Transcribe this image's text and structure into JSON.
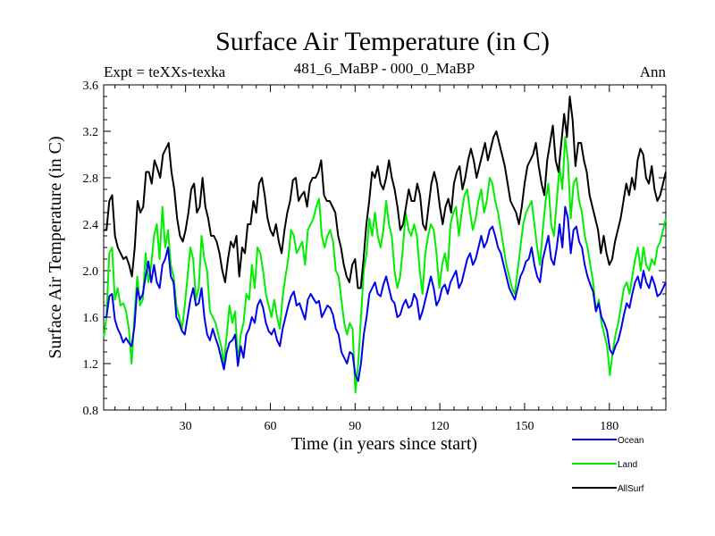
{
  "chart_data": {
    "type": "line",
    "title": "Surface Air Temperature (in C)",
    "subtitle_left": "Expt = teXXs-texka",
    "subtitle_center": "481_6_MaBP - 000_0_MaBP",
    "subtitle_right": "Ann",
    "xlabel": "Time (in years since start)",
    "ylabel": "Surface Air Temperature (in C)",
    "xlim": [
      1,
      200
    ],
    "ylim": [
      0.8,
      3.6
    ],
    "xticks": [
      30,
      60,
      90,
      120,
      150,
      180
    ],
    "yticks": [
      "0.8",
      "1.2",
      "1.6",
      "2.0",
      "2.4",
      "2.8",
      "3.2",
      "3.6"
    ],
    "series": [
      {
        "name": "Ocean",
        "color": "#0000ee",
        "values": [
          1.6,
          1.6,
          1.78,
          1.8,
          1.58,
          1.5,
          1.45,
          1.38,
          1.42,
          1.38,
          1.35,
          1.52,
          1.85,
          1.75,
          1.8,
          1.95,
          2.08,
          1.9,
          2.05,
          1.9,
          1.85,
          2.05,
          2.1,
          2.2,
          1.95,
          1.9,
          1.6,
          1.55,
          1.48,
          1.45,
          1.6,
          1.75,
          1.85,
          1.7,
          1.72,
          1.85,
          1.6,
          1.45,
          1.4,
          1.5,
          1.42,
          1.35,
          1.25,
          1.15,
          1.3,
          1.38,
          1.4,
          1.45,
          1.18,
          1.35,
          1.25,
          1.45,
          1.5,
          1.6,
          1.55,
          1.7,
          1.75,
          1.68,
          1.55,
          1.48,
          1.45,
          1.5,
          1.4,
          1.35,
          1.5,
          1.6,
          1.7,
          1.78,
          1.82,
          1.7,
          1.72,
          1.65,
          1.58,
          1.75,
          1.8,
          1.76,
          1.72,
          1.74,
          1.6,
          1.65,
          1.7,
          1.68,
          1.62,
          1.5,
          1.45,
          1.3,
          1.25,
          1.2,
          1.3,
          1.28,
          1.1,
          1.05,
          1.2,
          1.45,
          1.6,
          1.8,
          1.85,
          1.9,
          1.8,
          1.78,
          1.88,
          1.95,
          1.85,
          1.75,
          1.72,
          1.6,
          1.62,
          1.7,
          1.75,
          1.68,
          1.7,
          1.8,
          1.75,
          1.58,
          1.65,
          1.75,
          1.85,
          1.95,
          1.85,
          1.7,
          1.75,
          1.85,
          1.88,
          1.8,
          1.9,
          1.95,
          2.0,
          1.85,
          1.9,
          2.0,
          2.1,
          2.15,
          2.05,
          2.1,
          2.2,
          2.3,
          2.2,
          2.25,
          2.35,
          2.38,
          2.3,
          2.2,
          2.15,
          2.05,
          1.95,
          1.85,
          1.8,
          1.75,
          1.85,
          1.95,
          2.0,
          2.08,
          2.1,
          2.2,
          2.05,
          1.95,
          1.9,
          2.1,
          2.2,
          2.3,
          2.1,
          2.05,
          2.2,
          2.4,
          2.2,
          2.55,
          2.45,
          2.15,
          2.35,
          2.38,
          2.25,
          2.2,
          2.05,
          1.95,
          1.88,
          1.82,
          1.65,
          1.72,
          1.6,
          1.55,
          1.48,
          1.32,
          1.28,
          1.35,
          1.4,
          1.5,
          1.62,
          1.72,
          1.68,
          1.8,
          1.9,
          1.95,
          1.85,
          2.0,
          1.9,
          1.85,
          1.95,
          1.88,
          1.78,
          1.8,
          1.85,
          1.9
        ]
      },
      {
        "name": "Land",
        "color": "#00ee00",
        "values": [
          1.42,
          1.6,
          2.15,
          2.2,
          1.75,
          1.85,
          1.7,
          1.72,
          1.65,
          1.5,
          1.2,
          1.6,
          1.95,
          1.7,
          1.75,
          2.15,
          1.9,
          2.05,
          2.3,
          2.4,
          2.1,
          2.55,
          2.2,
          2.35,
          2.05,
          1.95,
          1.7,
          1.6,
          1.5,
          1.7,
          1.95,
          2.2,
          2.1,
          1.75,
          1.85,
          2.3,
          2.1,
          2.0,
          1.65,
          1.6,
          1.55,
          1.45,
          1.35,
          1.2,
          1.45,
          1.7,
          1.55,
          1.65,
          1.2,
          1.45,
          1.55,
          1.8,
          1.75,
          2.05,
          1.85,
          2.2,
          2.15,
          2.0,
          1.8,
          1.7,
          1.6,
          1.75,
          1.6,
          1.5,
          1.78,
          1.95,
          2.1,
          2.35,
          2.3,
          2.15,
          2.2,
          2.25,
          2.05,
          2.35,
          2.4,
          2.45,
          2.55,
          2.62,
          2.3,
          2.2,
          2.3,
          2.35,
          2.25,
          2.0,
          1.95,
          1.75,
          1.55,
          1.45,
          1.55,
          1.5,
          0.95,
          1.2,
          1.6,
          2.0,
          2.15,
          2.45,
          2.3,
          2.5,
          2.3,
          2.2,
          2.35,
          2.6,
          2.4,
          2.3,
          2.0,
          1.85,
          1.95,
          2.2,
          2.5,
          2.35,
          2.3,
          2.4,
          2.3,
          2.0,
          1.8,
          2.15,
          2.3,
          2.4,
          2.35,
          2.15,
          1.85,
          2.05,
          2.15,
          2.0,
          2.4,
          2.5,
          2.55,
          2.3,
          2.5,
          2.65,
          2.7,
          2.5,
          2.35,
          2.45,
          2.6,
          2.7,
          2.5,
          2.6,
          2.8,
          2.75,
          2.6,
          2.5,
          2.35,
          2.2,
          2.05,
          1.95,
          1.85,
          1.8,
          2.0,
          2.2,
          2.4,
          2.5,
          2.55,
          2.6,
          2.4,
          2.2,
          2.05,
          2.35,
          2.6,
          2.75,
          2.4,
          2.3,
          2.6,
          2.9,
          2.7,
          3.15,
          2.95,
          2.45,
          2.75,
          2.8,
          2.6,
          2.5,
          2.3,
          2.2,
          2.05,
          1.9,
          1.65,
          1.75,
          1.55,
          1.45,
          1.35,
          1.1,
          1.3,
          1.45,
          1.55,
          1.7,
          1.85,
          1.9,
          1.8,
          1.95,
          2.1,
          2.2,
          2.0,
          2.2,
          2.05,
          2.0,
          2.1,
          2.05,
          2.2,
          2.25,
          2.35,
          2.45
        ]
      },
      {
        "name": "AllSurf",
        "color": "#000000",
        "values": [
          2.35,
          2.35,
          2.6,
          2.65,
          2.3,
          2.2,
          2.15,
          2.1,
          2.12,
          2.05,
          1.95,
          2.2,
          2.6,
          2.5,
          2.55,
          2.85,
          2.85,
          2.75,
          2.95,
          2.88,
          2.8,
          3.0,
          3.05,
          3.1,
          2.85,
          2.7,
          2.45,
          2.3,
          2.25,
          2.35,
          2.5,
          2.7,
          2.75,
          2.5,
          2.55,
          2.8,
          2.55,
          2.45,
          2.3,
          2.3,
          2.25,
          2.15,
          2.0,
          1.9,
          2.1,
          2.25,
          2.2,
          2.3,
          1.95,
          2.2,
          2.15,
          2.4,
          2.4,
          2.6,
          2.5,
          2.75,
          2.8,
          2.65,
          2.45,
          2.35,
          2.3,
          2.4,
          2.25,
          2.15,
          2.35,
          2.5,
          2.6,
          2.78,
          2.8,
          2.6,
          2.65,
          2.68,
          2.55,
          2.75,
          2.8,
          2.8,
          2.85,
          2.95,
          2.65,
          2.6,
          2.6,
          2.55,
          2.5,
          2.3,
          2.2,
          2.05,
          1.95,
          1.9,
          2.05,
          2.1,
          1.85,
          1.85,
          2.1,
          2.4,
          2.6,
          2.85,
          2.8,
          2.9,
          2.75,
          2.7,
          2.8,
          2.95,
          2.8,
          2.7,
          2.55,
          2.35,
          2.4,
          2.55,
          2.7,
          2.6,
          2.6,
          2.75,
          2.65,
          2.4,
          2.35,
          2.55,
          2.75,
          2.85,
          2.75,
          2.55,
          2.4,
          2.55,
          2.62,
          2.5,
          2.75,
          2.85,
          2.9,
          2.7,
          2.8,
          2.95,
          3.05,
          2.95,
          2.8,
          2.9,
          3.0,
          3.1,
          2.95,
          3.05,
          3.15,
          3.2,
          3.1,
          3.0,
          2.9,
          2.75,
          2.6,
          2.55,
          2.5,
          2.4,
          2.55,
          2.75,
          2.9,
          2.95,
          3.0,
          3.1,
          2.9,
          2.75,
          2.65,
          2.95,
          3.1,
          3.25,
          2.95,
          2.85,
          3.1,
          3.35,
          3.15,
          3.5,
          3.3,
          2.9,
          3.1,
          3.1,
          2.95,
          2.85,
          2.65,
          2.55,
          2.45,
          2.35,
          2.15,
          2.3,
          2.15,
          2.05,
          2.1,
          2.25,
          2.35,
          2.45,
          2.6,
          2.75,
          2.65,
          2.8,
          2.7,
          2.95,
          3.05,
          3.0,
          2.8,
          2.75,
          2.9,
          2.7,
          2.6,
          2.65,
          2.75,
          2.85
        ]
      }
    ],
    "legend": [
      "Ocean",
      "Land",
      "AllSurf"
    ]
  }
}
